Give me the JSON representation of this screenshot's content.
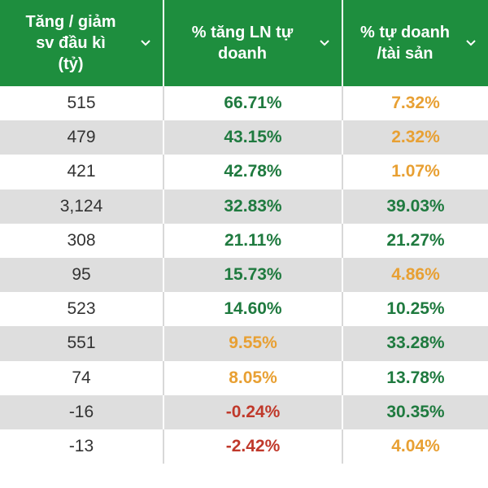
{
  "colors": {
    "header_bg": "#1e8e3e",
    "header_text": "#ffffff",
    "row_alt_bg": "#dedede",
    "green": "#1f7a3f",
    "orange": "#e8a033",
    "red": "#c0392b"
  },
  "header": {
    "col1": "Tăng / giảm\nsv đầu kì\n(tỷ)",
    "col2": "% tăng LN tự\ndoanh",
    "col3": "% tự doanh\n/tài sản",
    "sort_icon": "chevron-down-icon"
  },
  "rows": [
    {
      "change": "515",
      "profit_growth": "66.71%",
      "profit_color": "green",
      "ratio": "7.32%",
      "ratio_color": "orange"
    },
    {
      "change": "479",
      "profit_growth": "43.15%",
      "profit_color": "green",
      "ratio": "2.32%",
      "ratio_color": "orange"
    },
    {
      "change": "421",
      "profit_growth": "42.78%",
      "profit_color": "green",
      "ratio": "1.07%",
      "ratio_color": "orange"
    },
    {
      "change": "3,124",
      "profit_growth": "32.83%",
      "profit_color": "green",
      "ratio": "39.03%",
      "ratio_color": "green"
    },
    {
      "change": "308",
      "profit_growth": "21.11%",
      "profit_color": "green",
      "ratio": "21.27%",
      "ratio_color": "green"
    },
    {
      "change": "95",
      "profit_growth": "15.73%",
      "profit_color": "green",
      "ratio": "4.86%",
      "ratio_color": "orange"
    },
    {
      "change": "523",
      "profit_growth": "14.60%",
      "profit_color": "green",
      "ratio": "10.25%",
      "ratio_color": "green"
    },
    {
      "change": "551",
      "profit_growth": "9.55%",
      "profit_color": "orange",
      "ratio": "33.28%",
      "ratio_color": "green"
    },
    {
      "change": "74",
      "profit_growth": "8.05%",
      "profit_color": "orange",
      "ratio": "13.78%",
      "ratio_color": "green"
    },
    {
      "change": "-16",
      "profit_growth": "-0.24%",
      "profit_color": "red",
      "ratio": "30.35%",
      "ratio_color": "green"
    },
    {
      "change": "-13",
      "profit_growth": "-2.42%",
      "profit_color": "red",
      "ratio": "4.04%",
      "ratio_color": "orange"
    }
  ]
}
